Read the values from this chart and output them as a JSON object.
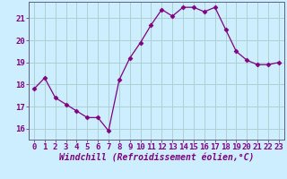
{
  "x": [
    0,
    1,
    2,
    3,
    4,
    5,
    6,
    7,
    8,
    9,
    10,
    11,
    12,
    13,
    14,
    15,
    16,
    17,
    18,
    19,
    20,
    21,
    22,
    23
  ],
  "y": [
    17.8,
    18.3,
    17.4,
    17.1,
    16.8,
    16.5,
    16.5,
    15.9,
    18.2,
    19.2,
    19.9,
    20.7,
    21.4,
    21.1,
    21.5,
    21.5,
    21.3,
    21.5,
    20.5,
    19.5,
    19.1,
    18.9,
    18.9,
    19.0
  ],
  "line_color": "#800080",
  "marker": "D",
  "marker_size": 2.5,
  "bg_color": "#cceeff",
  "grid_color": "#aacccc",
  "xlabel": "Windchill (Refroidissement éolien,°C)",
  "xlim": [
    -0.5,
    23.5
  ],
  "ylim": [
    15.5,
    21.75
  ],
  "yticks": [
    16,
    17,
    18,
    19,
    20,
    21
  ],
  "xticks": [
    0,
    1,
    2,
    3,
    4,
    5,
    6,
    7,
    8,
    9,
    10,
    11,
    12,
    13,
    14,
    15,
    16,
    17,
    18,
    19,
    20,
    21,
    22,
    23
  ],
  "tick_color": "#800080",
  "xlabel_fontsize": 7.0,
  "tick_fontsize": 6.5,
  "spine_color": "#606080"
}
